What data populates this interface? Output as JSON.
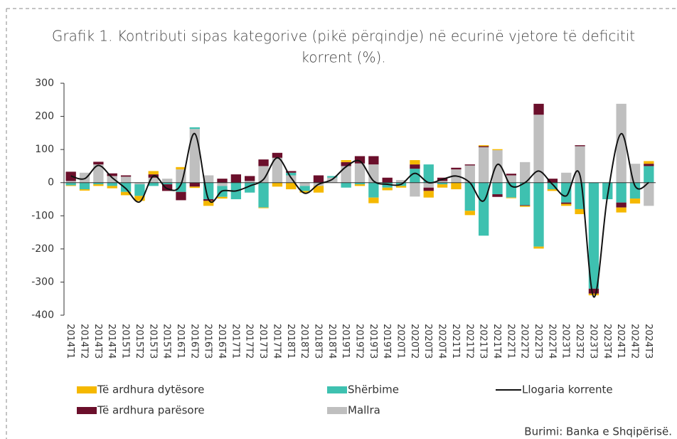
{
  "chart_data": {
    "type": "stacked_bar_line",
    "title": [
      "Grafik 1. Kontributi sipas kategorive (pikë përqindje) në ecurinë vjetore të deficitit",
      "korrent (%)."
    ],
    "source": "Burimi: Banka e Shqipërisë.",
    "categories": [
      "2014T1",
      "2014T2",
      "2014T3",
      "2014T4",
      "2015T1",
      "2015T2",
      "2015T3",
      "2015T4",
      "2016T1",
      "2016T2",
      "2016T3",
      "2016T4",
      "2017T1",
      "2017T2",
      "2017T3",
      "2017T4",
      "2018T1",
      "2018T2",
      "2018T3",
      "2018T4",
      "2019T1",
      "2019T2",
      "2019T3",
      "2019T4",
      "2020T1",
      "2020T2",
      "2020T3",
      "2020T4",
      "2021T1",
      "2021T2",
      "2021T3",
      "2021T4",
      "2022T1",
      "2022T2",
      "2022T3",
      "2022T4",
      "2023T1",
      "2023T2",
      "2023T3",
      "2023T4",
      "2024T1",
      "2024T2",
      "2024T3"
    ],
    "series": [
      {
        "name": "Mallra",
        "color": "#bfbfbf",
        "values": [
          5,
          30,
          55,
          20,
          18,
          -5,
          15,
          12,
          40,
          162,
          22,
          -10,
          0,
          5,
          50,
          75,
          22,
          -10,
          -10,
          15,
          50,
          58,
          55,
          0,
          8,
          -42,
          -15,
          5,
          40,
          52,
          107,
          98,
          22,
          62,
          205,
          0,
          30,
          110,
          0,
          0,
          238,
          57,
          -70
        ]
      },
      {
        "name": "Shërbime",
        "color": "#3ec1b0",
        "values": [
          -8,
          -20,
          -5,
          -10,
          -28,
          -35,
          -10,
          -5,
          -28,
          5,
          -50,
          -33,
          -50,
          -30,
          -75,
          0,
          8,
          -15,
          0,
          5,
          -15,
          -5,
          -45,
          -15,
          -10,
          42,
          55,
          -5,
          0,
          -85,
          -160,
          -35,
          -45,
          -68,
          -193,
          -20,
          -60,
          -80,
          -320,
          -50,
          -60,
          -48,
          50
        ]
      },
      {
        "name": "Të ardhura parësore",
        "color": "#6b0f2b",
        "values": [
          28,
          0,
          8,
          8,
          4,
          0,
          10,
          -20,
          -25,
          -12,
          -5,
          12,
          25,
          15,
          20,
          15,
          5,
          0,
          22,
          0,
          12,
          22,
          25,
          15,
          0,
          13,
          -10,
          10,
          5,
          3,
          3,
          -8,
          5,
          -2,
          33,
          12,
          -4,
          3,
          -15,
          0,
          -15,
          0,
          7
        ]
      },
      {
        "name": "Të ardhura dytësore",
        "color": "#f5b800",
        "values": [
          -2,
          -4,
          -5,
          -7,
          -10,
          -15,
          10,
          0,
          7,
          -4,
          -15,
          -5,
          0,
          0,
          -2,
          -12,
          -20,
          -5,
          -20,
          0,
          6,
          -5,
          -17,
          -8,
          -5,
          13,
          -20,
          -10,
          -20,
          -13,
          3,
          3,
          -2,
          -3,
          -6,
          -5,
          -6,
          -15,
          -5,
          0,
          -15,
          -15,
          8
        ]
      }
    ],
    "line": {
      "name": "Llogaria korrente",
      "color": "#111111",
      "values": [
        20,
        12,
        52,
        15,
        -18,
        -58,
        20,
        -18,
        -5,
        148,
        -50,
        -25,
        -25,
        -10,
        10,
        75,
        15,
        -32,
        -5,
        10,
        48,
        65,
        5,
        -5,
        -5,
        28,
        0,
        10,
        20,
        0,
        -55,
        55,
        -10,
        0,
        35,
        -5,
        -40,
        22,
        -345,
        -40,
        148,
        -10,
        0
      ]
    },
    "ylim": [
      -400,
      300
    ],
    "yticks": [
      -400,
      -300,
      -200,
      -100,
      0,
      100,
      200,
      300
    ]
  }
}
